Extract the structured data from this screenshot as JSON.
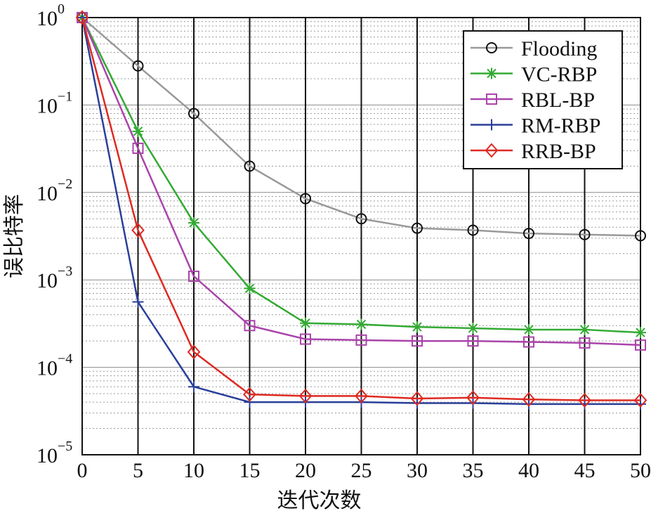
{
  "chart_data": {
    "type": "line",
    "title": "",
    "xlabel": "迭代次数",
    "ylabel": "误比特率",
    "xlim": [
      0,
      50
    ],
    "ylim": [
      1e-05,
      1
    ],
    "yscale": "log",
    "grid": true,
    "legend_position": "top-right",
    "x_ticks": [
      0,
      5,
      10,
      15,
      20,
      25,
      30,
      35,
      40,
      45,
      50
    ],
    "y_ticks": [
      {
        "base": "10",
        "exp": "0",
        "value": 1
      },
      {
        "base": "10",
        "exp": "−1",
        "value": 0.1
      },
      {
        "base": "10",
        "exp": "−2",
        "value": 0.01
      },
      {
        "base": "10",
        "exp": "−3",
        "value": 0.001
      },
      {
        "base": "10",
        "exp": "−4",
        "value": 0.0001
      },
      {
        "base": "10",
        "exp": "−5",
        "value": 1e-05
      }
    ],
    "x": [
      0,
      5,
      10,
      15,
      20,
      25,
      30,
      35,
      40,
      45,
      50
    ],
    "series": [
      {
        "name": "Flooding",
        "color": "#999999",
        "marker": "circle",
        "values": [
          1,
          0.28,
          0.08,
          0.02,
          0.0085,
          0.005,
          0.0039,
          0.0037,
          0.0034,
          0.0033,
          0.0032
        ]
      },
      {
        "name": "VC-RBP",
        "color": "#33aa33",
        "marker": "asterisk",
        "values": [
          1,
          0.05,
          0.0045,
          0.0008,
          0.00032,
          0.00031,
          0.00029,
          0.00028,
          0.00027,
          0.00027,
          0.00025
        ]
      },
      {
        "name": "RBL-BP",
        "color": "#aa44aa",
        "marker": "square",
        "values": [
          1,
          0.032,
          0.0011,
          0.0003,
          0.00021,
          0.000205,
          0.0002,
          0.0002,
          0.000195,
          0.00019,
          0.00018
        ]
      },
      {
        "name": "RM-RBP",
        "color": "#2a3f99",
        "marker": "plus",
        "values": [
          1,
          0.00056,
          6e-05,
          4e-05,
          4e-05,
          4e-05,
          3.9e-05,
          3.9e-05,
          3.8e-05,
          3.8e-05,
          3.8e-05
        ]
      },
      {
        "name": "RRB-BP",
        "color": "#dd2a22",
        "marker": "diamond",
        "values": [
          1,
          0.0037,
          0.00015,
          4.9e-05,
          4.7e-05,
          4.7e-05,
          4.4e-05,
          4.5e-05,
          4.3e-05,
          4.2e-05,
          4.2e-05
        ]
      }
    ]
  }
}
